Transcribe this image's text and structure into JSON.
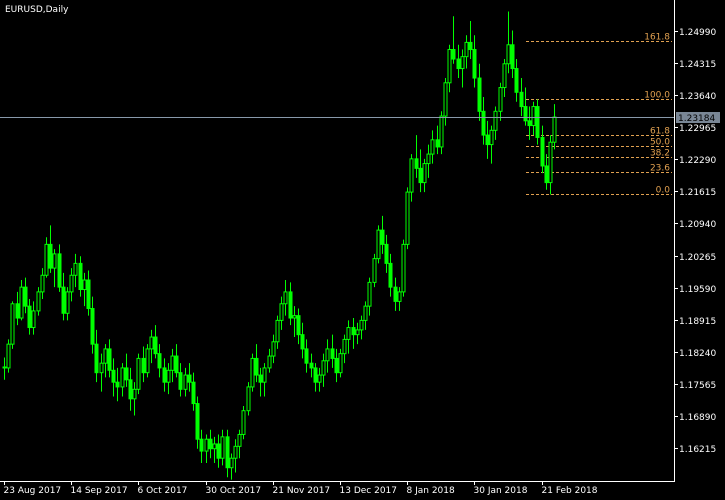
{
  "window": {
    "title": "EURUSD,Daily"
  },
  "colors": {
    "background": "#000000",
    "candle": "#00ff00",
    "axis": "#ffffff",
    "fibo": "#e0a050",
    "bid_line": "#8899aa",
    "price_tag_bg": "#7a8796",
    "price_tag_text": "#000000"
  },
  "current_price": {
    "label": "1.23184",
    "value": 1.23184
  },
  "chart_data": {
    "type": "candlestick",
    "symbol": "EURUSD",
    "timeframe": "Daily",
    "ylim": [
      1.1555,
      1.254
    ],
    "y_ticks": [
      {
        "value": 1.2499,
        "label": "1.24990"
      },
      {
        "value": 1.24315,
        "label": "1.24315"
      },
      {
        "value": 1.2364,
        "label": "1.23640"
      },
      {
        "value": 1.22965,
        "label": "1.22965"
      },
      {
        "value": 1.2229,
        "label": "1.22290"
      },
      {
        "value": 1.21615,
        "label": "1.21615"
      },
      {
        "value": 1.2094,
        "label": "1.20940"
      },
      {
        "value": 1.20265,
        "label": "1.20265"
      },
      {
        "value": 1.1959,
        "label": "1.19590"
      },
      {
        "value": 1.18915,
        "label": "1.18915"
      },
      {
        "value": 1.1824,
        "label": "1.18240"
      },
      {
        "value": 1.17565,
        "label": "1.17565"
      },
      {
        "value": 1.1689,
        "label": "1.16890"
      },
      {
        "value": 1.16215,
        "label": "1.16215"
      }
    ],
    "x_ticks": [
      {
        "index": 0,
        "label": "23 Aug 2017"
      },
      {
        "index": 16,
        "label": "14 Sep 2017"
      },
      {
        "index": 32,
        "label": "6 Oct 2017"
      },
      {
        "index": 48,
        "label": "30 Oct 2017"
      },
      {
        "index": 64,
        "label": "21 Nov 2017"
      },
      {
        "index": 80,
        "label": "13 Dec 2017"
      },
      {
        "index": 96,
        "label": "8 Jan 2018"
      },
      {
        "index": 112,
        "label": "30 Jan 2018"
      },
      {
        "index": 128,
        "label": "21 Feb 2018"
      }
    ],
    "fibonacci": {
      "start_index": 128,
      "levels": [
        {
          "label": "161.8",
          "value": 1.2479
        },
        {
          "label": "100.0",
          "value": 1.2355
        },
        {
          "label": "61.8",
          "value": 1.228
        },
        {
          "label": "50.0",
          "value": 1.2256
        },
        {
          "label": "38.2",
          "value": 1.2233
        },
        {
          "label": "23.6",
          "value": 1.2203
        },
        {
          "label": "0.0",
          "value": 1.2155
        }
      ]
    },
    "candles": [
      [
        1.1792,
        1.1812,
        1.1765,
        1.179
      ],
      [
        1.179,
        1.185,
        1.178,
        1.184
      ],
      [
        1.184,
        1.193,
        1.183,
        1.1925
      ],
      [
        1.1925,
        1.195,
        1.188,
        1.1895
      ],
      [
        1.1895,
        1.1975,
        1.189,
        1.196
      ],
      [
        1.196,
        1.198,
        1.1905,
        1.192
      ],
      [
        1.192,
        1.1935,
        1.186,
        1.1875
      ],
      [
        1.1875,
        1.193,
        1.186,
        1.191
      ],
      [
        1.191,
        1.196,
        1.19,
        1.195
      ],
      [
        1.195,
        1.2,
        1.1935,
        1.1985
      ],
      [
        1.1985,
        1.2065,
        1.198,
        1.205
      ],
      [
        1.205,
        1.209,
        1.199,
        1.2
      ],
      [
        1.2,
        1.204,
        1.196,
        1.203
      ],
      [
        1.203,
        1.205,
        1.195,
        1.196
      ],
      [
        1.196,
        1.199,
        1.189,
        1.1905
      ],
      [
        1.1905,
        1.196,
        1.189,
        1.195
      ],
      [
        1.195,
        1.2,
        1.193,
        1.1985
      ],
      [
        1.1985,
        1.203,
        1.196,
        1.201
      ],
      [
        1.201,
        1.2025,
        1.194,
        1.1955
      ],
      [
        1.1955,
        1.199,
        1.192,
        1.1975
      ],
      [
        1.1975,
        1.1995,
        1.19,
        1.1915
      ],
      [
        1.1915,
        1.194,
        1.182,
        1.184
      ],
      [
        1.184,
        1.187,
        1.176,
        1.178
      ],
      [
        1.178,
        1.182,
        1.174,
        1.18
      ],
      [
        1.18,
        1.184,
        1.177,
        1.183
      ],
      [
        1.183,
        1.185,
        1.177,
        1.1785
      ],
      [
        1.1785,
        1.181,
        1.173,
        1.176
      ],
      [
        1.176,
        1.179,
        1.172,
        1.175
      ],
      [
        1.175,
        1.18,
        1.173,
        1.179
      ],
      [
        1.179,
        1.182,
        1.175,
        1.1765
      ],
      [
        1.1765,
        1.179,
        1.17,
        1.1725
      ],
      [
        1.1725,
        1.176,
        1.169,
        1.1745
      ],
      [
        1.1745,
        1.182,
        1.1735,
        1.181
      ],
      [
        1.181,
        1.1835,
        1.176,
        1.178
      ],
      [
        1.178,
        1.184,
        1.177,
        1.183
      ],
      [
        1.183,
        1.187,
        1.18,
        1.1855
      ],
      [
        1.1855,
        1.188,
        1.181,
        1.182
      ],
      [
        1.182,
        1.184,
        1.177,
        1.179
      ],
      [
        1.179,
        1.181,
        1.174,
        1.176
      ],
      [
        1.176,
        1.18,
        1.1735,
        1.1785
      ],
      [
        1.1785,
        1.183,
        1.176,
        1.1815
      ],
      [
        1.1815,
        1.184,
        1.177,
        1.178
      ],
      [
        1.178,
        1.18,
        1.173,
        1.1745
      ],
      [
        1.1745,
        1.179,
        1.173,
        1.1775
      ],
      [
        1.1775,
        1.18,
        1.174,
        1.176
      ],
      [
        1.176,
        1.178,
        1.17,
        1.1715
      ],
      [
        1.1715,
        1.173,
        1.162,
        1.164
      ],
      [
        1.164,
        1.166,
        1.159,
        1.1615
      ],
      [
        1.1615,
        1.165,
        1.159,
        1.164
      ],
      [
        1.164,
        1.166,
        1.16,
        1.162
      ],
      [
        1.162,
        1.1645,
        1.159,
        1.163
      ],
      [
        1.163,
        1.165,
        1.158,
        1.16
      ],
      [
        1.16,
        1.166,
        1.1585,
        1.1645
      ],
      [
        1.1645,
        1.166,
        1.156,
        1.158
      ],
      [
        1.158,
        1.161,
        1.1555,
        1.16
      ],
      [
        1.16,
        1.164,
        1.157,
        1.1625
      ],
      [
        1.1625,
        1.166,
        1.16,
        1.165
      ],
      [
        1.165,
        1.171,
        1.164,
        1.17
      ],
      [
        1.17,
        1.176,
        1.169,
        1.175
      ],
      [
        1.175,
        1.182,
        1.174,
        1.181
      ],
      [
        1.181,
        1.184,
        1.176,
        1.1775
      ],
      [
        1.1775,
        1.179,
        1.173,
        1.176
      ],
      [
        1.176,
        1.18,
        1.173,
        1.179
      ],
      [
        1.179,
        1.183,
        1.178,
        1.1815
      ],
      [
        1.1815,
        1.186,
        1.18,
        1.1845
      ],
      [
        1.1845,
        1.19,
        1.183,
        1.189
      ],
      [
        1.189,
        1.194,
        1.187,
        1.1925
      ],
      [
        1.1925,
        1.1975,
        1.19,
        1.195
      ],
      [
        1.195,
        1.197,
        1.188,
        1.1895
      ],
      [
        1.1895,
        1.192,
        1.1855,
        1.19
      ],
      [
        1.19,
        1.1915,
        1.184,
        1.186
      ],
      [
        1.186,
        1.1885,
        1.181,
        1.183
      ],
      [
        1.183,
        1.185,
        1.178,
        1.18
      ],
      [
        1.18,
        1.182,
        1.177,
        1.179
      ],
      [
        1.179,
        1.18,
        1.174,
        1.176
      ],
      [
        1.176,
        1.179,
        1.174,
        1.1775
      ],
      [
        1.1775,
        1.182,
        1.175,
        1.1805
      ],
      [
        1.1805,
        1.185,
        1.178,
        1.183
      ],
      [
        1.183,
        1.186,
        1.179,
        1.181
      ],
      [
        1.181,
        1.183,
        1.176,
        1.178
      ],
      [
        1.178,
        1.183,
        1.177,
        1.182
      ],
      [
        1.182,
        1.186,
        1.18,
        1.185
      ],
      [
        1.185,
        1.189,
        1.182,
        1.1875
      ],
      [
        1.1875,
        1.1895,
        1.183,
        1.186
      ],
      [
        1.186,
        1.1885,
        1.184,
        1.187
      ],
      [
        1.187,
        1.19,
        1.185,
        1.189
      ],
      [
        1.189,
        1.193,
        1.187,
        1.192
      ],
      [
        1.192,
        1.198,
        1.19,
        1.197
      ],
      [
        1.197,
        1.203,
        1.196,
        1.202
      ],
      [
        1.202,
        1.209,
        1.201,
        1.208
      ],
      [
        1.208,
        1.211,
        1.203,
        1.205
      ],
      [
        1.205,
        1.207,
        1.199,
        1.201
      ],
      [
        1.201,
        1.203,
        1.194,
        1.196
      ],
      [
        1.196,
        1.198,
        1.191,
        1.193
      ],
      [
        1.193,
        1.196,
        1.191,
        1.195
      ],
      [
        1.195,
        1.206,
        1.194,
        1.205
      ],
      [
        1.205,
        1.217,
        1.204,
        1.216
      ],
      [
        1.216,
        1.224,
        1.214,
        1.223
      ],
      [
        1.223,
        1.228,
        1.219,
        1.221
      ],
      [
        1.221,
        1.225,
        1.216,
        1.218
      ],
      [
        1.218,
        1.223,
        1.216,
        1.222
      ],
      [
        1.222,
        1.226,
        1.219,
        1.224
      ],
      [
        1.224,
        1.229,
        1.222,
        1.227
      ],
      [
        1.227,
        1.23,
        1.224,
        1.2255
      ],
      [
        1.2255,
        1.233,
        1.224,
        1.232
      ],
      [
        1.232,
        1.24,
        1.23,
        1.239
      ],
      [
        1.239,
        1.247,
        1.237,
        1.246
      ],
      [
        1.246,
        1.253,
        1.243,
        1.244
      ],
      [
        1.244,
        1.247,
        1.24,
        1.242
      ],
      [
        1.242,
        1.246,
        1.238,
        1.2445
      ],
      [
        1.2445,
        1.249,
        1.242,
        1.2475
      ],
      [
        1.2475,
        1.252,
        1.244,
        1.246
      ],
      [
        1.246,
        1.249,
        1.238,
        1.24
      ],
      [
        1.24,
        1.243,
        1.231,
        1.233
      ],
      [
        1.233,
        1.236,
        1.226,
        1.228
      ],
      [
        1.228,
        1.231,
        1.223,
        1.226
      ],
      [
        1.226,
        1.23,
        1.222,
        1.229
      ],
      [
        1.229,
        1.234,
        1.227,
        1.233
      ],
      [
        1.233,
        1.239,
        1.231,
        1.238
      ],
      [
        1.238,
        1.244,
        1.236,
        1.243
      ],
      [
        1.243,
        1.254,
        1.241,
        1.247
      ],
      [
        1.247,
        1.25,
        1.24,
        1.242
      ],
      [
        1.242,
        1.244,
        1.235,
        1.237
      ],
      [
        1.237,
        1.24,
        1.232,
        1.234
      ],
      [
        1.234,
        1.238,
        1.23,
        1.231
      ],
      [
        1.231,
        1.234,
        1.227,
        1.23
      ],
      [
        1.23,
        1.235,
        1.228,
        1.234
      ],
      [
        1.234,
        1.2355,
        1.226,
        1.2275
      ],
      [
        1.2275,
        1.23,
        1.22,
        1.2215
      ],
      [
        1.2215,
        1.224,
        1.2165,
        1.218
      ],
      [
        1.218,
        1.228,
        1.2155,
        1.2265
      ],
      [
        1.2265,
        1.2345,
        1.225,
        1.2318
      ]
    ]
  }
}
